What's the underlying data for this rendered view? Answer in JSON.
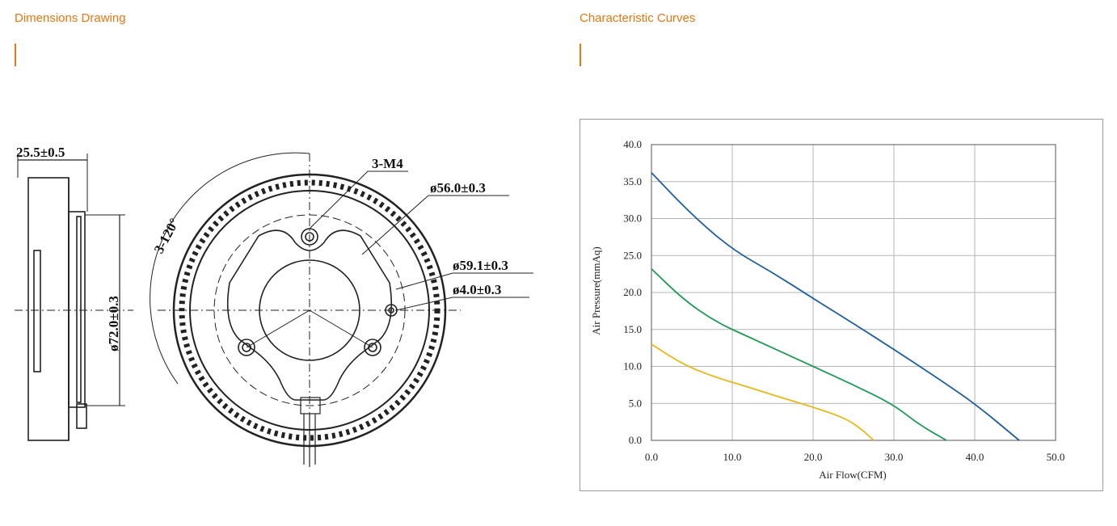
{
  "left_section": {
    "title": "Dimensions Drawing",
    "labels": {
      "thickness": "25.5±0.5",
      "angle": "3-120°",
      "screw": "3-M4",
      "d56": "ø56.0±0.3",
      "d59": "ø59.1±0.3",
      "d4": "ø4.0±0.3",
      "d72": "ø72.0±0.3"
    }
  },
  "right_section": {
    "title": "Characteristic Curves"
  },
  "colors": {
    "accent": "#e8770f",
    "series_blue": "#1f5f9f",
    "series_green": "#1f9a55",
    "series_yellow": "#e8b818"
  },
  "chart_data": {
    "type": "line",
    "title": "",
    "xlabel": "Air Flow(CFM)",
    "ylabel": "Air Pressure(mmAq)",
    "xlim": [
      0,
      50
    ],
    "ylim": [
      0,
      40
    ],
    "x_ticks": [
      "0.0",
      "10.0",
      "20.0",
      "30.0",
      "40.0",
      "50.0"
    ],
    "y_ticks": [
      "0.0",
      "5.0",
      "10.0",
      "15.0",
      "20.0",
      "25.0",
      "30.0",
      "35.0",
      "40.0"
    ],
    "grid": true,
    "series": [
      {
        "color": "#1f5f9f",
        "x": [
          0,
          5,
          10,
          15,
          20,
          25,
          30,
          35,
          40,
          45.5
        ],
        "y": [
          36.2,
          30.5,
          25.8,
          22.7,
          19.2,
          15.8,
          12.3,
          8.7,
          5.0,
          0.0
        ]
      },
      {
        "color": "#1f9a55",
        "x": [
          0,
          4,
          8,
          12,
          16,
          20,
          25,
          30,
          33,
          36.5
        ],
        "y": [
          23.2,
          19.0,
          16.0,
          14.0,
          12.0,
          10.0,
          7.5,
          4.8,
          2.2,
          0.0
        ]
      },
      {
        "color": "#e8b818",
        "x": [
          0,
          4,
          8,
          12,
          16,
          20,
          24,
          26,
          27.5
        ],
        "y": [
          13.0,
          10.2,
          8.5,
          7.2,
          5.8,
          4.5,
          3.0,
          1.5,
          0.0
        ]
      }
    ]
  }
}
